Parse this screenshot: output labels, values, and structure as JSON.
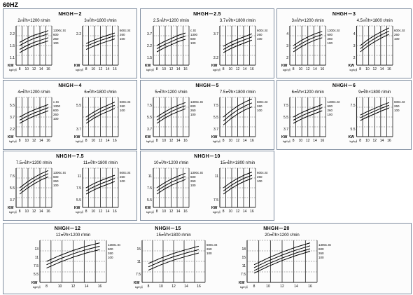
{
  "header": {
    "freq": "60HZ"
  },
  "units": {
    "kw": "KW",
    "pressure": "kgf/㎠"
  },
  "groups": [
    {
      "id": "nhgh2",
      "title": "NHGH－2",
      "charts": [
        {
          "label": "2㎥/h×1200 r/min",
          "yticks": [
            "2.2",
            "1.5",
            "1.1"
          ],
          "xticks": [
            "8",
            "10",
            "12",
            "14",
            "16"
          ],
          "legend": [
            "1300c.St",
            "600",
            "260",
            "100"
          ],
          "series": [
            [
              0.58,
              0.68,
              0.76,
              0.82,
              0.88
            ],
            [
              0.5,
              0.6,
              0.68,
              0.74,
              0.8
            ],
            [
              0.4,
              0.5,
              0.58,
              0.64,
              0.7
            ],
            [
              0.32,
              0.42,
              0.5,
              0.56,
              0.62
            ]
          ]
        },
        {
          "label": "3㎥/h×1800 r/min",
          "yticks": [
            "2.2"
          ],
          "xticks": [
            "8",
            "10",
            "12",
            "14",
            "16"
          ],
          "legend": [
            "600c.St",
            "260",
            "100"
          ],
          "series": [
            [
              0.55,
              0.63,
              0.7,
              0.76,
              0.82
            ],
            [
              0.48,
              0.56,
              0.63,
              0.69,
              0.75
            ],
            [
              0.4,
              0.48,
              0.55,
              0.61,
              0.67
            ]
          ]
        }
      ]
    },
    {
      "id": "nhgh25",
      "title": "NHGH－2.5",
      "charts": [
        {
          "label": "2.5㎥/h×1200 r/min",
          "yticks": [
            "3.7",
            "2.2",
            "1.5"
          ],
          "xticks": [
            "8",
            "10",
            "12",
            "14",
            "16"
          ],
          "legend": [
            "c.St",
            "1300",
            "600",
            "100"
          ],
          "series": [
            [
              0.5,
              0.6,
              0.68,
              0.76,
              0.82
            ],
            [
              0.42,
              0.52,
              0.6,
              0.68,
              0.74
            ],
            [
              0.34,
              0.44,
              0.52,
              0.6,
              0.66
            ]
          ]
        },
        {
          "label": "3.7㎥/h×1800 r/min",
          "yticks": [
            "3.7",
            "2.2"
          ],
          "xticks": [
            "8",
            "10",
            "12",
            "14",
            "16"
          ],
          "legend": [
            "600c.St",
            "260",
            "100"
          ],
          "series": [
            [
              0.48,
              0.58,
              0.66,
              0.73,
              0.8
            ],
            [
              0.4,
              0.5,
              0.58,
              0.65,
              0.72
            ],
            [
              0.32,
              0.42,
              0.5,
              0.57,
              0.64
            ]
          ]
        }
      ]
    },
    {
      "id": "nhgh3",
      "title": "NHGH－3",
      "charts": [
        {
          "label": "3㎥/h×1200 r/min",
          "yticks": [
            "4",
            "3",
            "2"
          ],
          "xticks": [
            "8",
            "10",
            "12",
            "14",
            "16"
          ],
          "legend": [
            "1300c.St",
            "600",
            "260",
            "100"
          ],
          "series": [
            [
              0.5,
              0.62,
              0.72,
              0.8,
              0.86
            ],
            [
              0.42,
              0.54,
              0.64,
              0.72,
              0.78
            ],
            [
              0.34,
              0.46,
              0.56,
              0.64,
              0.7
            ]
          ]
        },
        {
          "label": "4.5㎥/h×1800 r/min",
          "yticks": [
            "4",
            "3",
            "2"
          ],
          "xticks": [
            "8",
            "10",
            "12",
            "14",
            "16"
          ],
          "legend": [
            "600c.St",
            "260",
            "100"
          ],
          "series": [
            [
              0.5,
              0.64,
              0.76,
              0.86,
              0.95
            ],
            [
              0.42,
              0.56,
              0.68,
              0.78,
              0.87
            ],
            [
              0.34,
              0.48,
              0.6,
              0.7,
              0.79
            ]
          ]
        }
      ]
    },
    {
      "id": "nhgh4",
      "title": "NHGH－4",
      "charts": [
        {
          "label": "4㎥/h×1200 r/min",
          "yticks": [
            "5.5",
            "3.7",
            "2.2"
          ],
          "xticks": [
            "8",
            "10",
            "12",
            "14",
            "16"
          ],
          "legend": [
            "c.St",
            "1300",
            "600",
            "260",
            "100"
          ],
          "series": [
            [
              0.5,
              0.6,
              0.68,
              0.75,
              0.82
            ],
            [
              0.42,
              0.52,
              0.6,
              0.67,
              0.74
            ],
            [
              0.34,
              0.44,
              0.52,
              0.59,
              0.66
            ]
          ]
        },
        {
          "label": "6㎥/h×1800 r/min",
          "yticks": [
            "5.5",
            "3.7"
          ],
          "xticks": [
            "8",
            "10",
            "12",
            "14",
            "16"
          ],
          "legend": [
            "600c.St",
            "260",
            "100"
          ],
          "series": [
            [
              0.5,
              0.62,
              0.72,
              0.8,
              0.88
            ],
            [
              0.42,
              0.54,
              0.64,
              0.72,
              0.8
            ],
            [
              0.34,
              0.46,
              0.56,
              0.64,
              0.72
            ]
          ]
        }
      ]
    },
    {
      "id": "nhgh5",
      "title": "NHGH－5",
      "charts": [
        {
          "label": "5㎥/h×1200 r/min",
          "yticks": [
            "7.5",
            "5.5",
            "3.7"
          ],
          "xticks": [
            "8",
            "10",
            "12",
            "14",
            "16"
          ],
          "legend": [
            "1300c.St",
            "600",
            "260",
            "100"
          ],
          "series": [
            [
              0.5,
              0.62,
              0.72,
              0.8,
              0.87
            ],
            [
              0.42,
              0.54,
              0.64,
              0.72,
              0.79
            ],
            [
              0.34,
              0.46,
              0.56,
              0.64,
              0.71
            ]
          ]
        },
        {
          "label": "7.5㎥/h×1800 r/min",
          "yticks": [
            "7.5",
            "5.5",
            "3.7"
          ],
          "xticks": [
            "8",
            "10",
            "12",
            "14",
            "16"
          ],
          "legend": [
            "600c.St",
            "260",
            "100"
          ],
          "series": [
            [
              0.5,
              0.65,
              0.78,
              0.88,
              0.96
            ],
            [
              0.4,
              0.55,
              0.68,
              0.78,
              0.86
            ],
            [
              0.3,
              0.45,
              0.58,
              0.68,
              0.76
            ]
          ]
        }
      ]
    },
    {
      "id": "nhgh6",
      "title": "NHGH－6",
      "charts": [
        {
          "label": "6㎥/h×1200 r/min",
          "yticks": [
            "7.5",
            "5.5",
            "3.7"
          ],
          "xticks": [
            "8",
            "10",
            "12",
            "14",
            "16"
          ],
          "legend": [
            "1300c.St",
            "600",
            "260",
            "100"
          ],
          "series": [
            [
              0.5,
              0.6,
              0.68,
              0.75,
              0.82
            ],
            [
              0.42,
              0.52,
              0.6,
              0.67,
              0.74
            ],
            [
              0.34,
              0.44,
              0.52,
              0.59,
              0.66
            ]
          ]
        },
        {
          "label": "9㎥/h×1800 r/min",
          "yticks": [
            "7.5",
            "5.5"
          ],
          "xticks": [
            "8",
            "10",
            "12",
            "14",
            "16"
          ],
          "legend": [
            "600c.St",
            "260",
            "100"
          ],
          "series": [
            [
              0.55,
              0.64,
              0.72,
              0.8,
              0.87
            ],
            [
              0.48,
              0.57,
              0.65,
              0.73,
              0.8
            ],
            [
              0.41,
              0.5,
              0.58,
              0.66,
              0.73
            ]
          ]
        }
      ]
    },
    {
      "id": "nhgh75",
      "title": "NHGH－7.5",
      "charts": [
        {
          "label": "7.5㎥/h×1200 r/min",
          "yticks": [
            "7.5",
            "5.5",
            "3.7"
          ],
          "xticks": [
            "8",
            "10",
            "12",
            "14",
            "16"
          ],
          "legend": [
            "1300c.St",
            "600",
            "260",
            "100"
          ],
          "series": [
            [
              0.5,
              0.64,
              0.76,
              0.86,
              0.94
            ],
            [
              0.42,
              0.56,
              0.68,
              0.78,
              0.86
            ],
            [
              0.34,
              0.48,
              0.6,
              0.7,
              0.78
            ]
          ]
        },
        {
          "label": "11㎥/h×1800 r/min",
          "yticks": [
            "11",
            "7.5",
            "5.5"
          ],
          "xticks": [
            "8",
            "10",
            "12",
            "14",
            "16"
          ],
          "legend": [
            "600c.St",
            "260",
            "100"
          ],
          "series": [
            [
              0.5,
              0.6,
              0.68,
              0.75,
              0.82
            ],
            [
              0.42,
              0.52,
              0.6,
              0.67,
              0.74
            ],
            [
              0.34,
              0.44,
              0.52,
              0.59,
              0.66
            ]
          ]
        }
      ]
    },
    {
      "id": "nhgh10",
      "title": "NHGH－10",
      "charts": [
        {
          "label": "10㎥/h×1200 r/min",
          "yticks": [
            "11",
            "7.5",
            "5.5"
          ],
          "xticks": [
            "8",
            "10",
            "12",
            "14",
            "16"
          ],
          "legend": [
            "1300c.St",
            "600",
            "260",
            "100"
          ],
          "series": [
            [
              0.5,
              0.62,
              0.72,
              0.8,
              0.87
            ],
            [
              0.42,
              0.54,
              0.64,
              0.72,
              0.79
            ],
            [
              0.34,
              0.46,
              0.56,
              0.64,
              0.71
            ]
          ]
        },
        {
          "label": "15㎥/h×1800 r/min",
          "yticks": [
            "11",
            "7.5"
          ],
          "xticks": [
            "8",
            "10",
            "12",
            "14",
            "16"
          ],
          "legend": [
            "600c.St",
            "260",
            "100"
          ],
          "series": [
            [
              0.5,
              0.63,
              0.74,
              0.83,
              0.9
            ],
            [
              0.42,
              0.55,
              0.66,
              0.75,
              0.82
            ],
            [
              0.34,
              0.47,
              0.58,
              0.67,
              0.74
            ]
          ]
        }
      ]
    },
    {
      "id": "nhgh12",
      "title": "NHGH－12",
      "charts": [
        {
          "label": "12㎥/h×1200 r/min",
          "yticks": [
            "13",
            "11",
            "7.5",
            "5.5"
          ],
          "xticks": [
            "8",
            "10",
            "12",
            "14",
            "16"
          ],
          "legend": [
            "1300c.St",
            "600",
            "260",
            "100"
          ],
          "series": [
            [
              0.5,
              0.64,
              0.76,
              0.86,
              0.94
            ],
            [
              0.42,
              0.56,
              0.68,
              0.78,
              0.86
            ],
            [
              0.34,
              0.48,
              0.6,
              0.7,
              0.78
            ]
          ]
        }
      ]
    },
    {
      "id": "nhgh15",
      "title": "NHGH－15",
      "charts": [
        {
          "label": "15㎥/h×1800 r/min",
          "yticks": [
            "15",
            "11",
            "7.5"
          ],
          "xticks": [
            "8",
            "10",
            "12",
            "14",
            "16"
          ],
          "legend": [
            "600c.St",
            "260",
            "100"
          ],
          "series": [
            [
              0.45,
              0.58,
              0.69,
              0.78,
              0.86
            ],
            [
              0.37,
              0.5,
              0.61,
              0.7,
              0.78
            ],
            [
              0.29,
              0.42,
              0.53,
              0.62,
              0.7
            ]
          ]
        }
      ]
    },
    {
      "id": "nhgh20",
      "title": "NHGH－20",
      "charts": [
        {
          "label": "20㎥/h×1200 r/min",
          "yticks": [
            "18",
            "15",
            "11",
            "7.5"
          ],
          "xticks": [
            "8",
            "10",
            "12",
            "14",
            "16"
          ],
          "legend": [
            "1300c.St",
            "600",
            "260",
            "100"
          ],
          "series": [
            [
              0.42,
              0.58,
              0.72,
              0.84,
              0.94
            ],
            [
              0.35,
              0.51,
              0.65,
              0.77,
              0.87
            ],
            [
              0.28,
              0.44,
              0.58,
              0.7,
              0.8
            ],
            [
              0.22,
              0.38,
              0.52,
              0.64,
              0.74
            ]
          ]
        }
      ]
    }
  ],
  "chart_data": {
    "type": "line",
    "xlabel": "kgf/㎠",
    "ylabel": "KW",
    "categories": [
      "8",
      "10",
      "12",
      "14",
      "16"
    ]
  }
}
